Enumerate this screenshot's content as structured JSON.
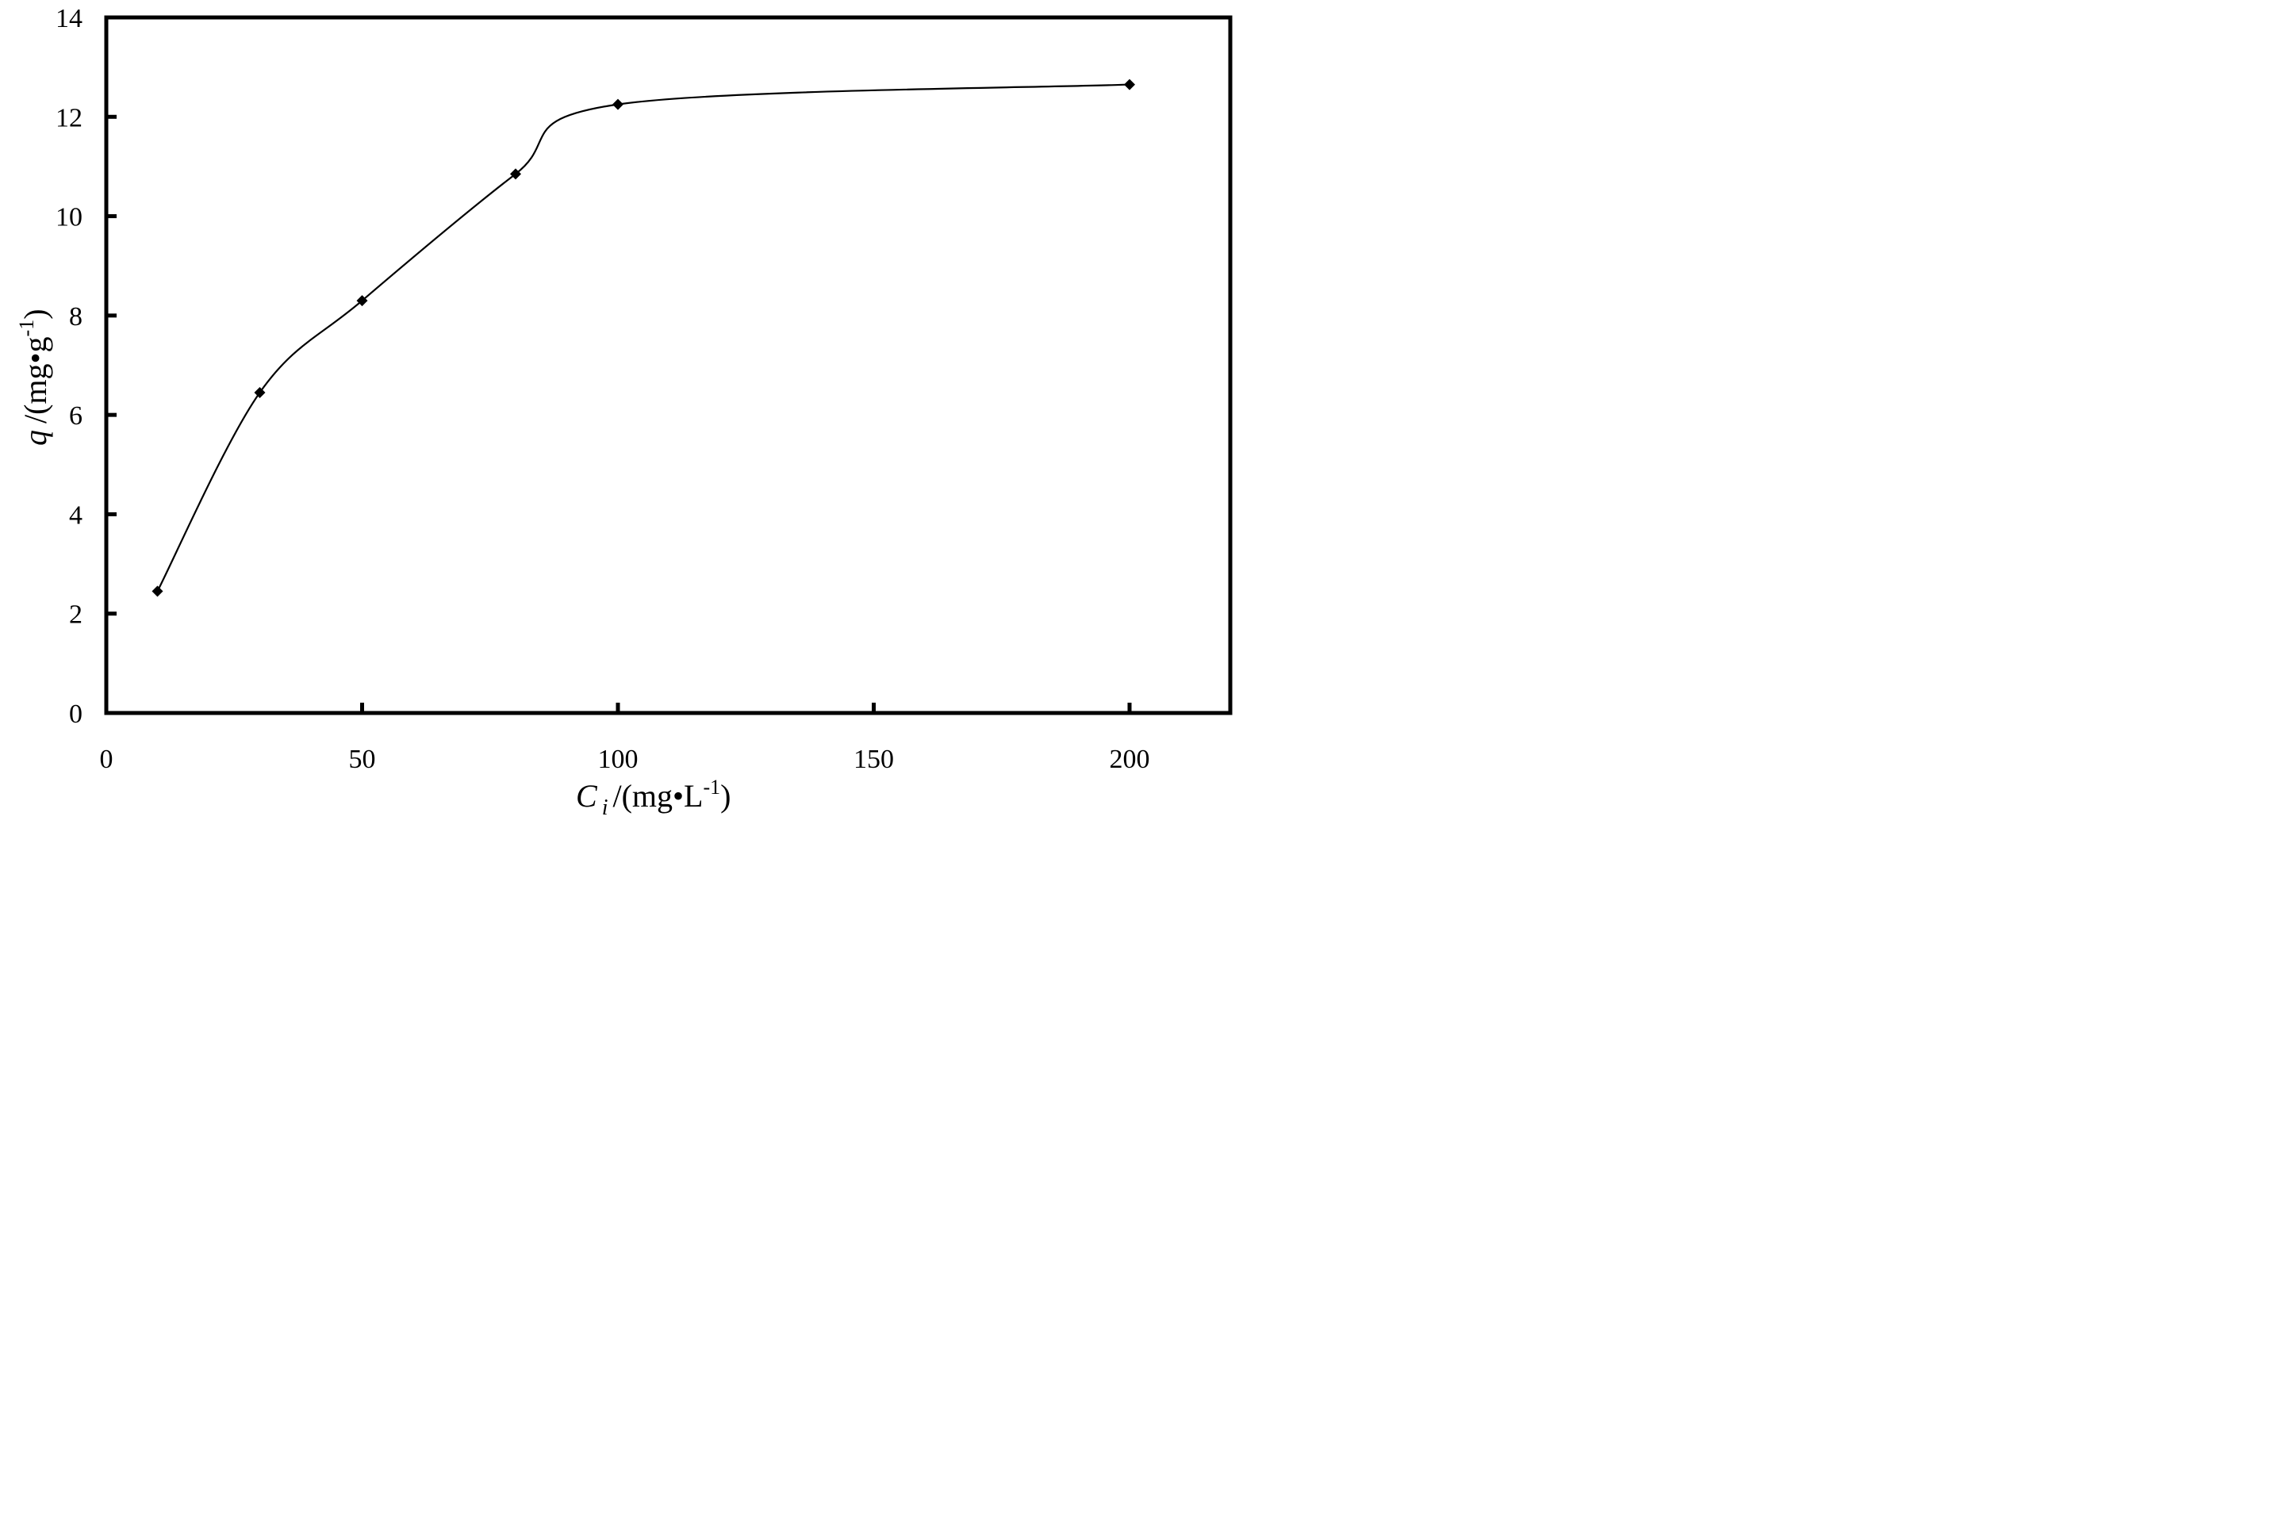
{
  "chart_data": {
    "type": "line",
    "smooth": true,
    "marker": "diamond",
    "grid": false,
    "legend": "none",
    "x_axis_note": "tick spacing is not proportional; ticks 0, 50, 100, 150 equally spaced, then 200 at the next interval",
    "xticks": [
      0,
      50,
      100,
      150,
      200
    ],
    "yticks": [
      0,
      2,
      4,
      6,
      8,
      10,
      12,
      14
    ],
    "ylim": [
      0,
      14
    ],
    "series": [
      {
        "x": [
          10,
          30,
          50,
          80,
          100,
          200
        ],
        "y": [
          2.45,
          6.45,
          8.3,
          10.85,
          12.25,
          12.65
        ]
      }
    ],
    "xlabel": {
      "variable": "C",
      "subscript": "i",
      "unit_open": "/(mg",
      "dot": "•",
      "unit_base": "L",
      "unit_exponent": "-1",
      "unit_close": ")"
    },
    "ylabel": {
      "variable": "q",
      "unit_open": "/(mg",
      "dot": "•",
      "unit_base": "g",
      "unit_exponent": "-1",
      "unit_close": ")"
    },
    "colors": {
      "line": "#000000",
      "marker": "#000000",
      "axes": "#000000"
    }
  }
}
